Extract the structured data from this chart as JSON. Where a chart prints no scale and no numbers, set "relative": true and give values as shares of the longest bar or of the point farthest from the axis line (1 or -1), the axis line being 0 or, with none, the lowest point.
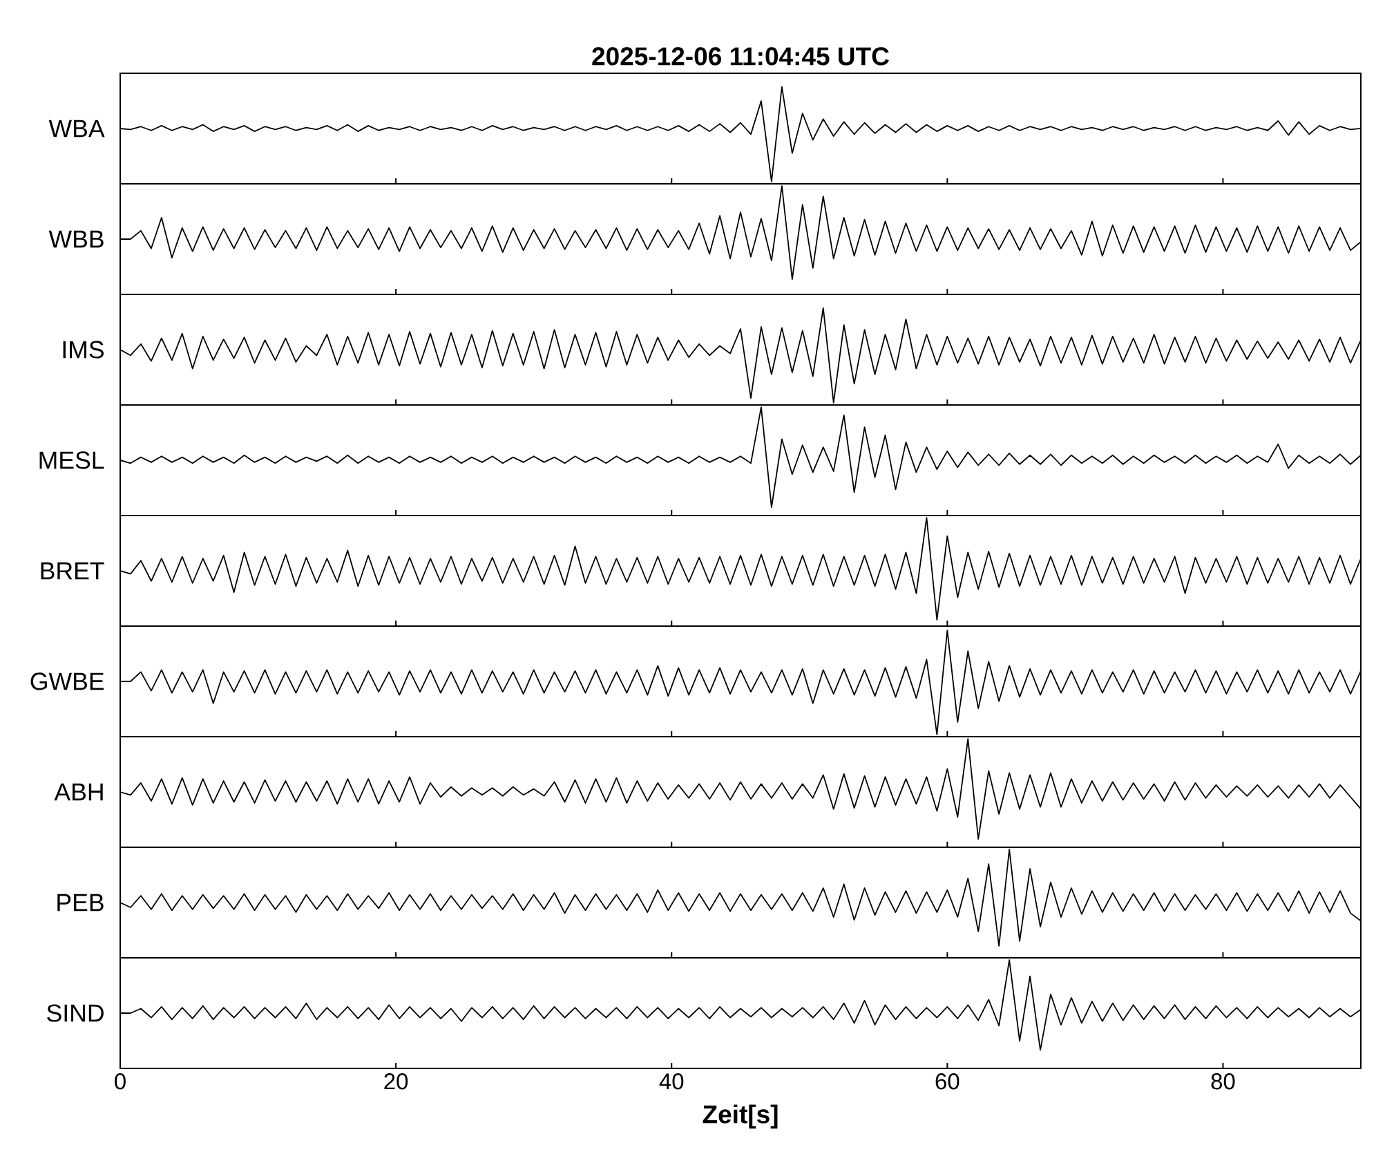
{
  "chart_data": [
    {
      "type": "line",
      "title": "2025-12-06  11:04:45 UTC",
      "ylabel": "WBA",
      "relative": true,
      "color": "#000000",
      "xlim": [
        0,
        90
      ],
      "xticks": [
        0,
        20,
        40,
        60,
        80
      ],
      "tick_labels": false,
      "x": [
        0,
        0.75,
        1.5,
        2.25,
        3,
        3.75,
        4.5,
        5.25,
        6,
        6.75,
        7.5,
        8.25,
        9,
        9.75,
        10.5,
        11.25,
        12,
        12.75,
        13.5,
        14.25,
        15,
        15.75,
        16.5,
        17.25,
        18,
        18.75,
        19.5,
        20.25,
        21,
        21.75,
        22.5,
        23.25,
        24,
        24.75,
        25.5,
        26.25,
        27,
        27.75,
        28.5,
        29.25,
        30,
        30.75,
        31.5,
        32.25,
        33,
        33.75,
        34.5,
        35.25,
        36,
        36.75,
        37.5,
        38.25,
        39,
        39.75,
        40.5,
        41.25,
        42,
        42.75,
        43.5,
        44.25,
        45,
        45.75,
        46.5,
        47.25,
        48,
        48.75,
        49.5,
        50.25,
        51,
        51.75,
        52.5,
        53.25,
        54,
        54.75,
        55.5,
        56.25,
        57,
        57.75,
        58.5,
        59.25,
        60,
        60.75,
        61.5,
        62.25,
        63,
        63.75,
        64.5,
        65.25,
        66,
        66.75,
        67.5,
        68.25,
        69,
        69.75,
        70.5,
        71.25,
        72,
        72.75,
        73.5,
        74.25,
        75,
        75.75,
        76.5,
        77.25,
        78,
        78.75,
        79.5,
        80.25,
        81,
        81.75,
        82.5,
        83.25,
        84,
        84.75,
        85.5,
        86.25,
        87,
        87.75,
        88.5,
        89.25,
        90
      ],
      "values": [
        0.56,
        0.55,
        0.58,
        0.54,
        0.59,
        0.54,
        0.58,
        0.55,
        0.6,
        0.53,
        0.58,
        0.55,
        0.59,
        0.53,
        0.58,
        0.55,
        0.58,
        0.54,
        0.57,
        0.55,
        0.59,
        0.54,
        0.6,
        0.53,
        0.59,
        0.54,
        0.57,
        0.55,
        0.58,
        0.54,
        0.58,
        0.55,
        0.57,
        0.54,
        0.58,
        0.54,
        0.59,
        0.55,
        0.58,
        0.54,
        0.57,
        0.55,
        0.58,
        0.54,
        0.58,
        0.54,
        0.58,
        0.55,
        0.59,
        0.54,
        0.58,
        0.54,
        0.58,
        0.54,
        0.59,
        0.53,
        0.6,
        0.53,
        0.61,
        0.52,
        0.62,
        0.5,
        0.85,
        0.0,
        1.0,
        0.3,
        0.72,
        0.44,
        0.66,
        0.48,
        0.63,
        0.5,
        0.62,
        0.51,
        0.6,
        0.52,
        0.61,
        0.52,
        0.6,
        0.53,
        0.59,
        0.54,
        0.59,
        0.53,
        0.58,
        0.54,
        0.59,
        0.54,
        0.58,
        0.55,
        0.58,
        0.54,
        0.58,
        0.55,
        0.57,
        0.54,
        0.58,
        0.55,
        0.58,
        0.54,
        0.57,
        0.55,
        0.58,
        0.54,
        0.58,
        0.54,
        0.57,
        0.55,
        0.58,
        0.54,
        0.57,
        0.54,
        0.64,
        0.49,
        0.63,
        0.5,
        0.59,
        0.54,
        0.58,
        0.55,
        0.56
      ]
    },
    {
      "type": "line",
      "ylabel": "WBB",
      "relative": true,
      "color": "#000000",
      "xlim": [
        0,
        90
      ],
      "xticks": [
        0,
        20,
        40,
        60,
        80
      ],
      "tick_labels": false,
      "x": [
        0,
        0.75,
        1.5,
        2.25,
        3,
        3.75,
        4.5,
        5.25,
        6,
        6.75,
        7.5,
        8.25,
        9,
        9.75,
        10.5,
        11.25,
        12,
        12.75,
        13.5,
        14.25,
        15,
        15.75,
        16.5,
        17.25,
        18,
        18.75,
        19.5,
        20.25,
        21,
        21.75,
        22.5,
        23.25,
        24,
        24.75,
        25.5,
        26.25,
        27,
        27.75,
        28.5,
        29.25,
        30,
        30.75,
        31.5,
        32.25,
        33,
        33.75,
        34.5,
        35.25,
        36,
        36.75,
        37.5,
        38.25,
        39,
        39.75,
        40.5,
        41.25,
        42,
        42.75,
        43.5,
        44.25,
        45,
        45.75,
        46.5,
        47.25,
        48,
        48.75,
        49.5,
        50.25,
        51,
        51.75,
        52.5,
        53.25,
        54,
        54.75,
        55.5,
        56.25,
        57,
        57.75,
        58.5,
        59.25,
        60,
        60.75,
        61.5,
        62.25,
        63,
        63.75,
        64.5,
        65.25,
        66,
        66.75,
        67.5,
        68.25,
        69,
        69.75,
        70.5,
        71.25,
        72,
        72.75,
        73.5,
        74.25,
        75,
        75.75,
        76.5,
        77.25,
        78,
        78.75,
        79.5,
        80.25,
        81,
        81.75,
        82.5,
        83.25,
        84,
        84.75,
        85.5,
        86.25,
        87,
        87.75,
        88.5,
        89.25,
        90
      ],
      "values": [
        0.43,
        0.43,
        0.52,
        0.33,
        0.66,
        0.23,
        0.55,
        0.3,
        0.56,
        0.31,
        0.54,
        0.33,
        0.55,
        0.32,
        0.53,
        0.34,
        0.52,
        0.33,
        0.55,
        0.31,
        0.56,
        0.33,
        0.52,
        0.34,
        0.54,
        0.32,
        0.55,
        0.3,
        0.56,
        0.33,
        0.53,
        0.34,
        0.52,
        0.33,
        0.55,
        0.3,
        0.57,
        0.29,
        0.55,
        0.31,
        0.53,
        0.33,
        0.54,
        0.32,
        0.52,
        0.34,
        0.53,
        0.33,
        0.55,
        0.31,
        0.54,
        0.32,
        0.53,
        0.34,
        0.52,
        0.32,
        0.6,
        0.27,
        0.68,
        0.22,
        0.72,
        0.24,
        0.65,
        0.2,
        1.0,
        0.0,
        0.8,
        0.12,
        0.89,
        0.22,
        0.66,
        0.25,
        0.64,
        0.26,
        0.62,
        0.28,
        0.6,
        0.3,
        0.58,
        0.3,
        0.56,
        0.31,
        0.55,
        0.33,
        0.54,
        0.32,
        0.53,
        0.31,
        0.55,
        0.32,
        0.54,
        0.33,
        0.52,
        0.26,
        0.62,
        0.25,
        0.58,
        0.28,
        0.57,
        0.29,
        0.56,
        0.3,
        0.57,
        0.28,
        0.58,
        0.29,
        0.56,
        0.3,
        0.55,
        0.29,
        0.57,
        0.3,
        0.56,
        0.28,
        0.57,
        0.3,
        0.56,
        0.31,
        0.55,
        0.31,
        0.4
      ]
    },
    {
      "type": "line",
      "ylabel": "IMS",
      "relative": true,
      "color": "#000000",
      "xlim": [
        0,
        90
      ],
      "xticks": [
        0,
        20,
        40,
        60,
        80
      ],
      "tick_labels": false,
      "x": [
        0,
        0.75,
        1.5,
        2.25,
        3,
        3.75,
        4.5,
        5.25,
        6,
        6.75,
        7.5,
        8.25,
        9,
        9.75,
        10.5,
        11.25,
        12,
        12.75,
        13.5,
        14.25,
        15,
        15.75,
        16.5,
        17.25,
        18,
        18.75,
        19.5,
        20.25,
        21,
        21.75,
        22.5,
        23.25,
        24,
        24.75,
        25.5,
        26.25,
        27,
        27.75,
        28.5,
        29.25,
        30,
        30.75,
        31.5,
        32.25,
        33,
        33.75,
        34.5,
        35.25,
        36,
        36.75,
        37.5,
        38.25,
        39,
        39.75,
        40.5,
        41.25,
        42,
        42.75,
        43.5,
        44.25,
        45,
        45.75,
        46.5,
        47.25,
        48,
        48.75,
        49.5,
        50.25,
        51,
        51.75,
        52.5,
        53.25,
        54,
        54.75,
        55.5,
        56.25,
        57,
        57.75,
        58.5,
        59.25,
        60,
        60.75,
        61.5,
        62.25,
        63,
        63.75,
        64.5,
        65.25,
        66,
        66.75,
        67.5,
        68.25,
        69,
        69.75,
        70.5,
        71.25,
        72,
        72.75,
        73.5,
        74.25,
        75,
        75.75,
        76.5,
        77.25,
        78,
        78.75,
        79.5,
        80.25,
        81,
        81.75,
        82.5,
        83.25,
        84,
        84.75,
        85.5,
        86.25,
        87,
        87.75,
        88.5,
        89.25,
        90
      ],
      "values": [
        0.56,
        0.5,
        0.62,
        0.44,
        0.68,
        0.45,
        0.73,
        0.36,
        0.7,
        0.45,
        0.67,
        0.47,
        0.69,
        0.42,
        0.66,
        0.45,
        0.68,
        0.43,
        0.6,
        0.5,
        0.72,
        0.4,
        0.7,
        0.42,
        0.74,
        0.4,
        0.72,
        0.39,
        0.75,
        0.41,
        0.73,
        0.38,
        0.74,
        0.4,
        0.72,
        0.37,
        0.76,
        0.39,
        0.73,
        0.4,
        0.75,
        0.36,
        0.77,
        0.37,
        0.72,
        0.4,
        0.74,
        0.38,
        0.75,
        0.4,
        0.72,
        0.42,
        0.69,
        0.45,
        0.66,
        0.48,
        0.62,
        0.5,
        0.6,
        0.52,
        0.78,
        0.05,
        0.8,
        0.3,
        0.79,
        0.32,
        0.76,
        0.28,
        1.0,
        0.0,
        0.82,
        0.2,
        0.77,
        0.3,
        0.72,
        0.35,
        0.88,
        0.36,
        0.72,
        0.4,
        0.7,
        0.42,
        0.68,
        0.41,
        0.7,
        0.4,
        0.69,
        0.43,
        0.67,
        0.39,
        0.7,
        0.42,
        0.69,
        0.4,
        0.71,
        0.41,
        0.7,
        0.43,
        0.68,
        0.42,
        0.72,
        0.41,
        0.69,
        0.43,
        0.7,
        0.42,
        0.68,
        0.44,
        0.66,
        0.46,
        0.65,
        0.47,
        0.64,
        0.46,
        0.66,
        0.44,
        0.67,
        0.43,
        0.69,
        0.42,
        0.66
      ]
    },
    {
      "type": "line",
      "ylabel": "MESL",
      "relative": true,
      "color": "#000000",
      "xlim": [
        0,
        90
      ],
      "xticks": [
        0,
        20,
        40,
        60,
        80
      ],
      "tick_labels": false,
      "x": [
        0,
        0.75,
        1.5,
        2.25,
        3,
        3.75,
        4.5,
        5.25,
        6,
        6.75,
        7.5,
        8.25,
        9,
        9.75,
        10.5,
        11.25,
        12,
        12.75,
        13.5,
        14.25,
        15,
        15.75,
        16.5,
        17.25,
        18,
        18.75,
        19.5,
        20.25,
        21,
        21.75,
        22.5,
        23.25,
        24,
        24.75,
        25.5,
        26.25,
        27,
        27.75,
        28.5,
        29.25,
        30,
        30.75,
        31.5,
        32.25,
        33,
        33.75,
        34.5,
        35.25,
        36,
        36.75,
        37.5,
        38.25,
        39,
        39.75,
        40.5,
        41.25,
        42,
        42.75,
        43.5,
        44.25,
        45,
        45.75,
        46.5,
        47.25,
        48,
        48.75,
        49.5,
        50.25,
        51,
        51.75,
        52.5,
        53.25,
        54,
        54.75,
        55.5,
        56.25,
        57,
        57.75,
        58.5,
        59.25,
        60,
        60.75,
        61.5,
        62.25,
        63,
        63.75,
        64.5,
        65.25,
        66,
        66.75,
        67.5,
        68.25,
        69,
        69.75,
        70.5,
        71.25,
        72,
        72.75,
        73.5,
        74.25,
        75,
        75.75,
        76.5,
        77.25,
        78,
        78.75,
        79.5,
        80.25,
        81,
        81.75,
        82.5,
        83.25,
        84,
        84.75,
        85.5,
        86.25,
        87,
        87.75,
        88.5,
        89.25,
        90
      ],
      "values": [
        0.47,
        0.44,
        0.5,
        0.45,
        0.51,
        0.45,
        0.5,
        0.44,
        0.51,
        0.45,
        0.5,
        0.44,
        0.52,
        0.45,
        0.5,
        0.44,
        0.51,
        0.45,
        0.5,
        0.46,
        0.51,
        0.44,
        0.52,
        0.44,
        0.51,
        0.45,
        0.5,
        0.44,
        0.51,
        0.45,
        0.5,
        0.45,
        0.51,
        0.44,
        0.5,
        0.45,
        0.51,
        0.44,
        0.5,
        0.45,
        0.51,
        0.45,
        0.5,
        0.44,
        0.51,
        0.45,
        0.5,
        0.44,
        0.51,
        0.45,
        0.5,
        0.44,
        0.51,
        0.45,
        0.5,
        0.44,
        0.51,
        0.45,
        0.5,
        0.45,
        0.51,
        0.44,
        1.0,
        0.0,
        0.68,
        0.33,
        0.62,
        0.35,
        0.6,
        0.36,
        0.92,
        0.15,
        0.8,
        0.3,
        0.72,
        0.18,
        0.65,
        0.35,
        0.6,
        0.38,
        0.56,
        0.4,
        0.55,
        0.42,
        0.53,
        0.42,
        0.54,
        0.43,
        0.52,
        0.43,
        0.53,
        0.42,
        0.52,
        0.44,
        0.51,
        0.44,
        0.52,
        0.43,
        0.51,
        0.44,
        0.52,
        0.45,
        0.51,
        0.44,
        0.52,
        0.44,
        0.51,
        0.45,
        0.52,
        0.44,
        0.51,
        0.45,
        0.63,
        0.39,
        0.52,
        0.44,
        0.51,
        0.44,
        0.53,
        0.43,
        0.52
      ]
    },
    {
      "type": "line",
      "ylabel": "BRET",
      "relative": true,
      "color": "#000000",
      "xlim": [
        0,
        90
      ],
      "xticks": [
        0,
        20,
        40,
        60,
        80
      ],
      "tick_labels": false,
      "x": [
        0,
        0.75,
        1.5,
        2.25,
        3,
        3.75,
        4.5,
        5.25,
        6,
        6.75,
        7.5,
        8.25,
        9,
        9.75,
        10.5,
        11.25,
        12,
        12.75,
        13.5,
        14.25,
        15,
        15.75,
        16.5,
        17.25,
        18,
        18.75,
        19.5,
        20.25,
        21,
        21.75,
        22.5,
        23.25,
        24,
        24.75,
        25.5,
        26.25,
        27,
        27.75,
        28.5,
        29.25,
        30,
        30.75,
        31.5,
        32.25,
        33,
        33.75,
        34.5,
        35.25,
        36,
        36.75,
        37.5,
        38.25,
        39,
        39.75,
        40.5,
        41.25,
        42,
        42.75,
        43.5,
        44.25,
        45,
        45.75,
        46.5,
        47.25,
        48,
        48.75,
        49.5,
        50.25,
        51,
        51.75,
        52.5,
        53.25,
        54,
        54.75,
        55.5,
        56.25,
        57,
        57.75,
        58.5,
        59.25,
        60,
        60.75,
        61.5,
        62.25,
        63,
        63.75,
        64.5,
        65.25,
        66,
        66.75,
        67.5,
        68.25,
        69,
        69.75,
        70.5,
        71.25,
        72,
        72.75,
        73.5,
        74.25,
        75,
        75.75,
        76.5,
        77.25,
        78,
        78.75,
        79.5,
        80.25,
        81,
        81.75,
        82.5,
        83.25,
        84,
        84.75,
        85.5,
        86.25,
        87,
        87.75,
        88.5,
        89.25,
        90
      ],
      "values": [
        0.48,
        0.45,
        0.58,
        0.38,
        0.6,
        0.37,
        0.62,
        0.36,
        0.6,
        0.38,
        0.63,
        0.27,
        0.66,
        0.34,
        0.62,
        0.35,
        0.64,
        0.33,
        0.61,
        0.36,
        0.6,
        0.37,
        0.68,
        0.33,
        0.63,
        0.34,
        0.62,
        0.36,
        0.61,
        0.35,
        0.6,
        0.37,
        0.62,
        0.35,
        0.6,
        0.38,
        0.61,
        0.36,
        0.6,
        0.37,
        0.62,
        0.35,
        0.63,
        0.34,
        0.72,
        0.36,
        0.62,
        0.35,
        0.6,
        0.37,
        0.61,
        0.36,
        0.62,
        0.35,
        0.6,
        0.37,
        0.61,
        0.36,
        0.62,
        0.35,
        0.63,
        0.34,
        0.64,
        0.33,
        0.62,
        0.35,
        0.63,
        0.34,
        0.64,
        0.33,
        0.62,
        0.34,
        0.63,
        0.33,
        0.64,
        0.3,
        0.66,
        0.26,
        1.0,
        0.0,
        0.82,
        0.22,
        0.66,
        0.3,
        0.67,
        0.32,
        0.65,
        0.33,
        0.63,
        0.34,
        0.62,
        0.35,
        0.63,
        0.34,
        0.62,
        0.36,
        0.61,
        0.35,
        0.62,
        0.36,
        0.6,
        0.37,
        0.62,
        0.26,
        0.61,
        0.36,
        0.6,
        0.37,
        0.62,
        0.35,
        0.61,
        0.36,
        0.6,
        0.37,
        0.62,
        0.35,
        0.61,
        0.36,
        0.63,
        0.35,
        0.6
      ]
    },
    {
      "type": "line",
      "ylabel": "GWBE",
      "relative": true,
      "color": "#000000",
      "xlim": [
        0,
        90
      ],
      "xticks": [
        0,
        20,
        40,
        60,
        80
      ],
      "tick_labels": false,
      "x": [
        0,
        0.75,
        1.5,
        2.25,
        3,
        3.75,
        4.5,
        5.25,
        6,
        6.75,
        7.5,
        8.25,
        9,
        9.75,
        10.5,
        11.25,
        12,
        12.75,
        13.5,
        14.25,
        15,
        15.75,
        16.5,
        17.25,
        18,
        18.75,
        19.5,
        20.25,
        21,
        21.75,
        22.5,
        23.25,
        24,
        24.75,
        25.5,
        26.25,
        27,
        27.75,
        28.5,
        29.25,
        30,
        30.75,
        31.5,
        32.25,
        33,
        33.75,
        34.5,
        35.25,
        36,
        36.75,
        37.5,
        38.25,
        39,
        39.75,
        40.5,
        41.25,
        42,
        42.75,
        43.5,
        44.25,
        45,
        45.75,
        46.5,
        47.25,
        48,
        48.75,
        49.5,
        50.25,
        51,
        51.75,
        52.5,
        53.25,
        54,
        54.75,
        55.5,
        56.25,
        57,
        57.75,
        58.5,
        59.25,
        60,
        60.75,
        61.5,
        62.25,
        63,
        63.75,
        64.5,
        65.25,
        66,
        66.75,
        67.5,
        68.25,
        69,
        69.75,
        70.5,
        71.25,
        72,
        72.75,
        73.5,
        74.25,
        75,
        75.75,
        76.5,
        77.25,
        78,
        78.75,
        79.5,
        80.25,
        81,
        81.75,
        82.5,
        83.25,
        84,
        84.75,
        85.5,
        86.25,
        87,
        87.75,
        88.5,
        89.25,
        90
      ],
      "values": [
        0.51,
        0.51,
        0.6,
        0.42,
        0.62,
        0.4,
        0.6,
        0.41,
        0.62,
        0.3,
        0.6,
        0.41,
        0.61,
        0.4,
        0.62,
        0.39,
        0.6,
        0.4,
        0.61,
        0.41,
        0.62,
        0.39,
        0.6,
        0.4,
        0.61,
        0.41,
        0.6,
        0.38,
        0.61,
        0.41,
        0.62,
        0.4,
        0.6,
        0.39,
        0.62,
        0.4,
        0.61,
        0.41,
        0.6,
        0.39,
        0.62,
        0.4,
        0.6,
        0.41,
        0.61,
        0.4,
        0.62,
        0.39,
        0.6,
        0.4,
        0.62,
        0.38,
        0.66,
        0.37,
        0.64,
        0.38,
        0.62,
        0.4,
        0.64,
        0.39,
        0.62,
        0.41,
        0.6,
        0.4,
        0.62,
        0.38,
        0.63,
        0.3,
        0.62,
        0.39,
        0.63,
        0.38,
        0.62,
        0.37,
        0.64,
        0.36,
        0.65,
        0.35,
        0.72,
        0.0,
        1.0,
        0.12,
        0.8,
        0.25,
        0.7,
        0.32,
        0.66,
        0.36,
        0.63,
        0.38,
        0.62,
        0.4,
        0.61,
        0.39,
        0.62,
        0.4,
        0.6,
        0.41,
        0.62,
        0.39,
        0.61,
        0.4,
        0.6,
        0.41,
        0.62,
        0.4,
        0.61,
        0.39,
        0.6,
        0.41,
        0.62,
        0.4,
        0.61,
        0.39,
        0.62,
        0.4,
        0.6,
        0.41,
        0.62,
        0.39,
        0.61
      ]
    },
    {
      "type": "line",
      "ylabel": "ABH",
      "relative": true,
      "color": "#000000",
      "xlim": [
        0,
        90
      ],
      "xticks": [
        0,
        20,
        40,
        60,
        80
      ],
      "tick_labels": false,
      "x": [
        0,
        0.75,
        1.5,
        2.25,
        3,
        3.75,
        4.5,
        5.25,
        6,
        6.75,
        7.5,
        8.25,
        9,
        9.75,
        10.5,
        11.25,
        12,
        12.75,
        13.5,
        14.25,
        15,
        15.75,
        16.5,
        17.25,
        18,
        18.75,
        19.5,
        20.25,
        21,
        21.75,
        22.5,
        23.25,
        24,
        24.75,
        25.5,
        26.25,
        27,
        27.75,
        28.5,
        29.25,
        30,
        30.75,
        31.5,
        32.25,
        33,
        33.75,
        34.5,
        35.25,
        36,
        36.75,
        37.5,
        38.25,
        39,
        39.75,
        40.5,
        41.25,
        42,
        42.75,
        43.5,
        44.25,
        45,
        45.75,
        46.5,
        47.25,
        48,
        48.75,
        49.5,
        50.25,
        51,
        51.75,
        52.5,
        53.25,
        54,
        54.75,
        55.5,
        56.25,
        57,
        57.75,
        58.5,
        59.25,
        60,
        60.75,
        61.5,
        62.25,
        63,
        63.75,
        64.5,
        65.25,
        66,
        66.75,
        67.5,
        68.25,
        69,
        69.75,
        70.5,
        71.25,
        72,
        72.75,
        73.5,
        74.25,
        75,
        75.75,
        76.5,
        77.25,
        78,
        78.75,
        79.5,
        80.25,
        81,
        81.75,
        82.5,
        83.25,
        84,
        84.75,
        85.5,
        86.25,
        87,
        87.75,
        88.5,
        89.25,
        90
      ],
      "values": [
        0.47,
        0.44,
        0.56,
        0.38,
        0.6,
        0.35,
        0.61,
        0.34,
        0.6,
        0.36,
        0.58,
        0.37,
        0.57,
        0.36,
        0.59,
        0.38,
        0.58,
        0.37,
        0.57,
        0.38,
        0.58,
        0.35,
        0.6,
        0.37,
        0.6,
        0.35,
        0.58,
        0.37,
        0.62,
        0.35,
        0.56,
        0.42,
        0.52,
        0.43,
        0.51,
        0.44,
        0.51,
        0.43,
        0.52,
        0.44,
        0.5,
        0.43,
        0.57,
        0.37,
        0.59,
        0.36,
        0.6,
        0.37,
        0.61,
        0.36,
        0.58,
        0.38,
        0.56,
        0.4,
        0.54,
        0.41,
        0.55,
        0.4,
        0.56,
        0.39,
        0.57,
        0.4,
        0.55,
        0.41,
        0.56,
        0.4,
        0.55,
        0.41,
        0.64,
        0.3,
        0.65,
        0.31,
        0.63,
        0.32,
        0.62,
        0.34,
        0.6,
        0.35,
        0.62,
        0.28,
        0.7,
        0.22,
        1.0,
        0.0,
        0.68,
        0.25,
        0.66,
        0.3,
        0.64,
        0.32,
        0.66,
        0.32,
        0.6,
        0.36,
        0.58,
        0.38,
        0.57,
        0.39,
        0.56,
        0.4,
        0.55,
        0.38,
        0.57,
        0.39,
        0.56,
        0.41,
        0.54,
        0.42,
        0.53,
        0.43,
        0.54,
        0.42,
        0.53,
        0.41,
        0.54,
        0.42,
        0.55,
        0.41,
        0.54,
        0.42,
        0.3
      ]
    },
    {
      "type": "line",
      "ylabel": "PEB",
      "relative": true,
      "color": "#000000",
      "xlim": [
        0,
        90
      ],
      "xticks": [
        0,
        20,
        40,
        60,
        80
      ],
      "tick_labels": false,
      "x": [
        0,
        0.75,
        1.5,
        2.25,
        3,
        3.75,
        4.5,
        5.25,
        6,
        6.75,
        7.5,
        8.25,
        9,
        9.75,
        10.5,
        11.25,
        12,
        12.75,
        13.5,
        14.25,
        15,
        15.75,
        16.5,
        17.25,
        18,
        18.75,
        19.5,
        20.25,
        21,
        21.75,
        22.5,
        23.25,
        24,
        24.75,
        25.5,
        26.25,
        27,
        27.75,
        28.5,
        29.25,
        30,
        30.75,
        31.5,
        32.25,
        33,
        33.75,
        34.5,
        35.25,
        36,
        36.75,
        37.5,
        38.25,
        39,
        39.75,
        40.5,
        41.25,
        42,
        42.75,
        43.5,
        44.25,
        45,
        45.75,
        46.5,
        47.25,
        48,
        48.75,
        49.5,
        50.25,
        51,
        51.75,
        52.5,
        53.25,
        54,
        54.75,
        55.5,
        56.25,
        57,
        57.75,
        58.5,
        59.25,
        60,
        60.75,
        61.5,
        62.25,
        63,
        63.75,
        64.5,
        65.25,
        66,
        66.75,
        67.5,
        68.25,
        69,
        69.75,
        70.5,
        71.25,
        72,
        72.75,
        73.5,
        74.25,
        75,
        75.75,
        76.5,
        77.25,
        78,
        78.75,
        79.5,
        80.25,
        81,
        81.75,
        82.5,
        83.25,
        84,
        84.75,
        85.5,
        86.25,
        87,
        87.75,
        88.5,
        89.25,
        90
      ],
      "values": [
        0.45,
        0.4,
        0.52,
        0.38,
        0.54,
        0.37,
        0.52,
        0.38,
        0.53,
        0.39,
        0.52,
        0.38,
        0.54,
        0.37,
        0.53,
        0.38,
        0.52,
        0.35,
        0.53,
        0.38,
        0.52,
        0.37,
        0.54,
        0.38,
        0.52,
        0.39,
        0.55,
        0.37,
        0.53,
        0.38,
        0.54,
        0.37,
        0.52,
        0.38,
        0.53,
        0.39,
        0.52,
        0.38,
        0.54,
        0.37,
        0.53,
        0.38,
        0.55,
        0.34,
        0.53,
        0.37,
        0.54,
        0.38,
        0.53,
        0.37,
        0.54,
        0.35,
        0.58,
        0.37,
        0.55,
        0.36,
        0.54,
        0.37,
        0.55,
        0.36,
        0.54,
        0.37,
        0.53,
        0.38,
        0.54,
        0.37,
        0.55,
        0.36,
        0.6,
        0.3,
        0.64,
        0.27,
        0.6,
        0.32,
        0.56,
        0.35,
        0.57,
        0.34,
        0.56,
        0.35,
        0.58,
        0.3,
        0.7,
        0.15,
        0.85,
        0.0,
        1.0,
        0.05,
        0.8,
        0.2,
        0.66,
        0.3,
        0.6,
        0.33,
        0.57,
        0.35,
        0.55,
        0.36,
        0.54,
        0.37,
        0.55,
        0.36,
        0.54,
        0.37,
        0.53,
        0.38,
        0.54,
        0.37,
        0.55,
        0.36,
        0.54,
        0.37,
        0.55,
        0.36,
        0.57,
        0.34,
        0.56,
        0.35,
        0.57,
        0.34,
        0.26
      ]
    },
    {
      "type": "line",
      "ylabel": "SIND",
      "xlabel": "Zeit[s]",
      "relative": true,
      "color": "#000000",
      "xlim": [
        0,
        90
      ],
      "xticks": [
        0,
        20,
        40,
        60,
        80
      ],
      "tick_labels": "x",
      "x": [
        0,
        0.75,
        1.5,
        2.25,
        3,
        3.75,
        4.5,
        5.25,
        6,
        6.75,
        7.5,
        8.25,
        9,
        9.75,
        10.5,
        11.25,
        12,
        12.75,
        13.5,
        14.25,
        15,
        15.75,
        16.5,
        17.25,
        18,
        18.75,
        19.5,
        20.25,
        21,
        21.75,
        22.5,
        23.25,
        24,
        24.75,
        25.5,
        26.25,
        27,
        27.75,
        28.5,
        29.25,
        30,
        30.75,
        31.5,
        32.25,
        33,
        33.75,
        34.5,
        35.25,
        36,
        36.75,
        37.5,
        38.25,
        39,
        39.75,
        40.5,
        41.25,
        42,
        42.75,
        43.5,
        44.25,
        45,
        45.75,
        46.5,
        47.25,
        48,
        48.75,
        49.5,
        50.25,
        51,
        51.75,
        52.5,
        53.25,
        54,
        54.75,
        55.5,
        56.25,
        57,
        57.75,
        58.5,
        59.25,
        60,
        60.75,
        61.5,
        62.25,
        63,
        63.75,
        64.5,
        65.25,
        66,
        66.75,
        67.5,
        68.25,
        69,
        69.75,
        70.5,
        71.25,
        72,
        72.75,
        73.5,
        74.25,
        75,
        75.75,
        76.5,
        77.25,
        78,
        78.75,
        79.5,
        80.25,
        81,
        81.75,
        82.5,
        83.25,
        84,
        84.75,
        85.5,
        86.25,
        87,
        87.75,
        88.5,
        89.25,
        90
      ],
      "values": [
        0.41,
        0.41,
        0.46,
        0.36,
        0.48,
        0.34,
        0.47,
        0.35,
        0.49,
        0.34,
        0.47,
        0.36,
        0.48,
        0.35,
        0.47,
        0.36,
        0.48,
        0.35,
        0.52,
        0.34,
        0.47,
        0.36,
        0.48,
        0.35,
        0.47,
        0.34,
        0.5,
        0.35,
        0.48,
        0.36,
        0.47,
        0.35,
        0.46,
        0.32,
        0.47,
        0.36,
        0.48,
        0.35,
        0.47,
        0.34,
        0.49,
        0.35,
        0.48,
        0.36,
        0.47,
        0.35,
        0.46,
        0.36,
        0.47,
        0.35,
        0.48,
        0.36,
        0.47,
        0.35,
        0.46,
        0.36,
        0.47,
        0.35,
        0.48,
        0.36,
        0.46,
        0.37,
        0.47,
        0.36,
        0.46,
        0.37,
        0.47,
        0.36,
        0.48,
        0.34,
        0.52,
        0.3,
        0.55,
        0.28,
        0.5,
        0.34,
        0.48,
        0.35,
        0.47,
        0.36,
        0.48,
        0.35,
        0.5,
        0.33,
        0.56,
        0.27,
        1.0,
        0.1,
        0.82,
        0.0,
        0.62,
        0.28,
        0.58,
        0.3,
        0.54,
        0.32,
        0.52,
        0.33,
        0.5,
        0.34,
        0.49,
        0.35,
        0.5,
        0.34,
        0.48,
        0.35,
        0.49,
        0.36,
        0.47,
        0.35,
        0.48,
        0.36,
        0.47,
        0.37,
        0.46,
        0.36,
        0.47,
        0.37,
        0.46,
        0.37,
        0.45
      ]
    }
  ]
}
